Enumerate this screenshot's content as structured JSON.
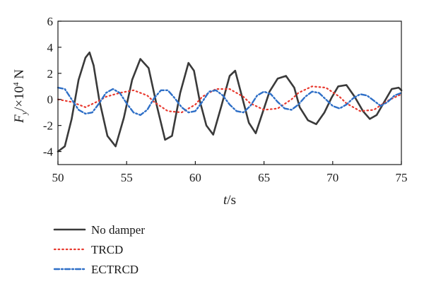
{
  "chart_data": {
    "type": "line",
    "xlabel": "t/s",
    "ylabel": "Fy/×10⁴ N",
    "xlim": [
      50,
      75
    ],
    "ylim": [
      -5,
      6
    ],
    "xticks": [
      50,
      55,
      60,
      65,
      70,
      75
    ],
    "yticks": [
      -4,
      -2,
      0,
      2,
      4,
      6
    ],
    "grid": false,
    "legend_position": "bottom-left",
    "series": [
      {
        "name": "No damper",
        "color": "#3a3a3a",
        "style": "solid",
        "x": [
          50.0,
          50.5,
          51.0,
          51.5,
          52.0,
          52.3,
          52.6,
          53.0,
          53.6,
          54.2,
          54.8,
          55.4,
          56.0,
          56.6,
          57.2,
          57.8,
          58.3,
          58.9,
          59.5,
          59.9,
          60.3,
          60.8,
          61.3,
          61.9,
          62.5,
          62.9,
          63.4,
          63.9,
          64.4,
          64.9,
          65.4,
          66.0,
          66.6,
          67.2,
          67.6,
          68.2,
          68.8,
          69.4,
          69.9,
          70.4,
          71.0,
          71.6,
          72.2,
          72.7,
          73.2,
          73.8,
          74.3,
          74.8,
          75.0
        ],
        "y": [
          -4.0,
          -3.6,
          -1.5,
          1.5,
          3.2,
          3.6,
          2.6,
          0.0,
          -2.8,
          -3.6,
          -1.4,
          1.5,
          3.1,
          2.4,
          -0.5,
          -3.1,
          -2.8,
          0.5,
          2.8,
          2.2,
          0.0,
          -2.0,
          -2.7,
          -0.5,
          1.8,
          2.2,
          0.2,
          -1.8,
          -2.6,
          -1.0,
          0.6,
          1.6,
          1.8,
          0.9,
          -0.6,
          -1.6,
          -1.9,
          -1.0,
          0.1,
          1.0,
          1.1,
          0.2,
          -0.9,
          -1.5,
          -1.2,
          -0.1,
          0.8,
          0.9,
          0.7
        ]
      },
      {
        "name": "TRCD",
        "color": "#e8392e",
        "style": "dotted",
        "x": [
          50.0,
          51.0,
          52.0,
          53.0,
          53.5,
          54.5,
          55.5,
          56.5,
          57.0,
          58.0,
          59.0,
          60.0,
          60.5,
          61.5,
          62.5,
          63.5,
          64.0,
          65.0,
          66.0,
          67.0,
          67.5,
          68.5,
          69.5,
          70.5,
          71.0,
          72.0,
          73.0,
          74.0,
          75.0
        ],
        "y": [
          0.0,
          -0.2,
          -0.6,
          -0.1,
          0.2,
          0.5,
          0.7,
          0.3,
          -0.2,
          -0.9,
          -1.0,
          -0.4,
          0.2,
          0.8,
          0.8,
          0.2,
          -0.3,
          -0.8,
          -0.7,
          0.0,
          0.5,
          1.0,
          0.9,
          0.2,
          -0.3,
          -0.9,
          -0.8,
          -0.1,
          0.4
        ]
      },
      {
        "name": "ECTRCD",
        "color": "#2e6fc7",
        "style": "dashdot",
        "x": [
          50.0,
          50.5,
          51.0,
          51.5,
          52.0,
          52.5,
          53.0,
          53.5,
          54.0,
          54.5,
          55.0,
          55.5,
          56.0,
          56.5,
          57.0,
          57.5,
          58.0,
          58.5,
          59.0,
          59.5,
          60.0,
          60.5,
          61.0,
          61.5,
          62.0,
          62.5,
          63.0,
          63.5,
          64.0,
          64.5,
          65.0,
          65.5,
          66.0,
          66.5,
          67.0,
          67.5,
          68.0,
          68.5,
          69.0,
          69.5,
          70.0,
          70.5,
          71.0,
          71.5,
          72.0,
          72.5,
          73.0,
          73.5,
          74.0,
          74.5,
          75.0
        ],
        "y": [
          0.9,
          0.8,
          0.0,
          -0.8,
          -1.1,
          -1.0,
          -0.3,
          0.5,
          0.8,
          0.5,
          -0.3,
          -1.0,
          -1.2,
          -0.8,
          0.1,
          0.7,
          0.7,
          0.1,
          -0.6,
          -1.0,
          -0.9,
          -0.2,
          0.6,
          0.7,
          0.3,
          -0.4,
          -0.9,
          -1.0,
          -0.5,
          0.3,
          0.6,
          0.4,
          -0.2,
          -0.7,
          -0.8,
          -0.4,
          0.2,
          0.6,
          0.5,
          0.0,
          -0.5,
          -0.7,
          -0.4,
          0.1,
          0.4,
          0.3,
          -0.1,
          -0.5,
          -0.2,
          0.3,
          0.5
        ]
      }
    ]
  }
}
